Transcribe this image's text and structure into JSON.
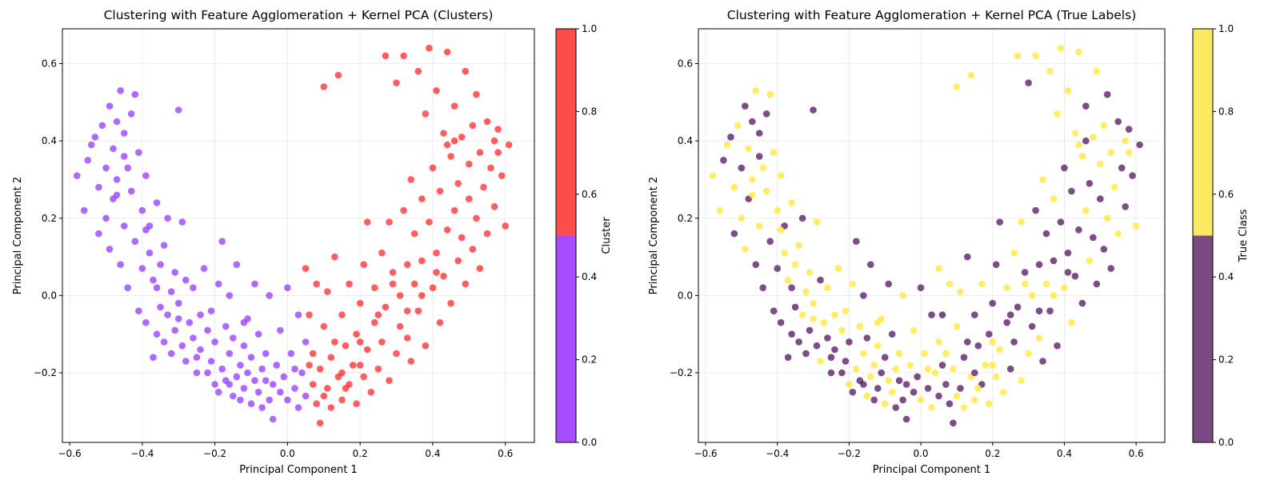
{
  "chart_data": [
    {
      "type": "scatter",
      "title": "Clustering with Feature Agglomeration + Kernel PCA (Clusters)",
      "xlabel": "Principal Component 1",
      "ylabel": "Principal Component 2",
      "xlim": [
        -0.62,
        0.68
      ],
      "ylim": [
        -0.38,
        0.69
      ],
      "xticks": [
        "−0.6",
        "−0.4",
        "−0.2",
        "0.0",
        "0.2",
        "0.4",
        "0.6"
      ],
      "xtick_values": [
        -0.6,
        -0.4,
        -0.2,
        0.0,
        0.2,
        0.4,
        0.6
      ],
      "yticks": [
        "−0.2",
        "0.0",
        "0.2",
        "0.4",
        "0.6"
      ],
      "ytick_values": [
        -0.2,
        0.0,
        0.2,
        0.4,
        0.6
      ],
      "grid": true,
      "color_by": "cluster",
      "series_colors": {
        "0": "#8b2bff",
        "1": "#ff1a1a"
      },
      "colorbar": {
        "label": "Cluster",
        "range": [
          0.0,
          1.0
        ],
        "ticks": [
          "0.0",
          "0.2",
          "0.4",
          "0.6",
          "0.8",
          "1.0"
        ],
        "tick_values": [
          0.0,
          0.2,
          0.4,
          0.6,
          0.8,
          1.0
        ],
        "segments": [
          {
            "from": 0.0,
            "to": 0.5,
            "color": "#a64dff"
          },
          {
            "from": 0.5,
            "to": 1.0,
            "color": "#ff4d4d"
          }
        ]
      }
    },
    {
      "type": "scatter",
      "title": "Clustering with Feature Agglomeration + Kernel PCA (True Labels)",
      "xlabel": "Principal Component 1",
      "ylabel": "Principal Component 2",
      "xlim": [
        -0.62,
        0.68
      ],
      "ylim": [
        -0.38,
        0.69
      ],
      "xticks": [
        "−0.6",
        "−0.4",
        "−0.2",
        "0.0",
        "0.2",
        "0.4",
        "0.6"
      ],
      "xtick_values": [
        -0.6,
        -0.4,
        -0.2,
        0.0,
        0.2,
        0.4,
        0.6
      ],
      "yticks": [
        "−0.2",
        "0.0",
        "0.2",
        "0.4",
        "0.6"
      ],
      "ytick_values": [
        -0.2,
        0.0,
        0.2,
        0.4,
        0.6
      ],
      "grid": true,
      "color_by": "true_label",
      "series_colors": {
        "0": "#440154",
        "1": "#fde725"
      },
      "colorbar": {
        "label": "True Class",
        "range": [
          0.0,
          1.0
        ],
        "ticks": [
          "0.0",
          "0.2",
          "0.4",
          "0.6",
          "0.8",
          "1.0"
        ],
        "tick_values": [
          0.0,
          0.2,
          0.4,
          0.6,
          0.8,
          1.0
        ],
        "segments": [
          {
            "from": 0.0,
            "to": 0.5,
            "color": "#7a4a85"
          },
          {
            "from": 0.5,
            "to": 1.0,
            "color": "#fde95f"
          }
        ]
      }
    }
  ],
  "points": [
    [
      -0.58,
      0.31,
      0,
      1
    ],
    [
      -0.56,
      0.22,
      0,
      1
    ],
    [
      -0.55,
      0.35,
      0,
      0
    ],
    [
      -0.54,
      0.39,
      0,
      1
    ],
    [
      -0.53,
      0.41,
      0,
      0
    ],
    [
      -0.52,
      0.28,
      0,
      1
    ],
    [
      -0.52,
      0.16,
      0,
      0
    ],
    [
      -0.51,
      0.44,
      0,
      1
    ],
    [
      -0.5,
      0.33,
      0,
      0
    ],
    [
      -0.5,
      0.2,
      0,
      1
    ],
    [
      -0.49,
      0.49,
      0,
      0
    ],
    [
      -0.49,
      0.12,
      0,
      1
    ],
    [
      -0.48,
      0.38,
      0,
      1
    ],
    [
      -0.48,
      0.25,
      0,
      0
    ],
    [
      -0.47,
      0.3,
      0,
      1
    ],
    [
      -0.47,
      0.45,
      0,
      0
    ],
    [
      -0.46,
      0.53,
      0,
      1
    ],
    [
      -0.46,
      0.08,
      0,
      0
    ],
    [
      -0.45,
      0.18,
      0,
      1
    ],
    [
      -0.45,
      0.42,
      0,
      0
    ],
    [
      -0.44,
      0.33,
      0,
      1
    ],
    [
      -0.44,
      0.02,
      0,
      0
    ],
    [
      -0.43,
      0.27,
      0,
      1
    ],
    [
      -0.43,
      0.47,
      0,
      0
    ],
    [
      -0.42,
      0.52,
      0,
      1
    ],
    [
      -0.42,
      0.14,
      0,
      0
    ],
    [
      -0.41,
      0.37,
      0,
      1
    ],
    [
      -0.41,
      -0.04,
      0,
      0
    ],
    [
      -0.4,
      0.22,
      0,
      1
    ],
    [
      -0.4,
      0.07,
      0,
      0
    ],
    [
      -0.39,
      0.31,
      0,
      1
    ],
    [
      -0.39,
      -0.07,
      0,
      0
    ],
    [
      -0.38,
      0.11,
      0,
      1
    ],
    [
      -0.38,
      0.18,
      0,
      0
    ],
    [
      -0.37,
      0.04,
      0,
      1
    ],
    [
      -0.37,
      -0.16,
      0,
      0
    ],
    [
      -0.36,
      0.24,
      0,
      1
    ],
    [
      -0.36,
      -0.1,
      0,
      0
    ],
    [
      -0.35,
      0.08,
      0,
      1
    ],
    [
      -0.35,
      -0.03,
      0,
      0
    ],
    [
      -0.34,
      0.13,
      0,
      1
    ],
    [
      -0.34,
      -0.12,
      0,
      0
    ],
    [
      -0.33,
      -0.05,
      0,
      1
    ],
    [
      -0.33,
      0.2,
      0,
      0
    ],
    [
      -0.32,
      0.01,
      0,
      1
    ],
    [
      -0.32,
      -0.15,
      0,
      0
    ],
    [
      -0.31,
      0.06,
      0,
      1
    ],
    [
      -0.31,
      -0.09,
      0,
      0
    ],
    [
      -0.3,
      0.48,
      0,
      0
    ],
    [
      -0.3,
      -0.02,
      0,
      1
    ],
    [
      -0.29,
      0.19,
      0,
      1
    ],
    [
      -0.29,
      -0.13,
      0,
      0
    ],
    [
      -0.28,
      -0.17,
      0,
      1
    ],
    [
      -0.28,
      0.04,
      0,
      0
    ],
    [
      -0.27,
      -0.07,
      0,
      1
    ],
    [
      -0.26,
      -0.11,
      0,
      0
    ],
    [
      -0.26,
      0.02,
      0,
      1
    ],
    [
      -0.25,
      -0.16,
      0,
      0
    ],
    [
      -0.24,
      -0.05,
      0,
      1
    ],
    [
      -0.24,
      -0.14,
      0,
      0
    ],
    [
      -0.23,
      0.07,
      0,
      1
    ],
    [
      -0.22,
      -0.2,
      0,
      0
    ],
    [
      -0.22,
      -0.09,
      0,
      1
    ],
    [
      -0.21,
      -0.17,
      0,
      0
    ],
    [
      -0.2,
      -0.23,
      0,
      1
    ],
    [
      -0.2,
      -0.12,
      0,
      0
    ],
    [
      -0.19,
      0.03,
      0,
      1
    ],
    [
      -0.19,
      -0.25,
      0,
      0
    ],
    [
      -0.18,
      -0.19,
      0,
      1
    ],
    [
      -0.18,
      0.14,
      0,
      0
    ],
    [
      -0.17,
      -0.08,
      0,
      1
    ],
    [
      -0.17,
      -0.22,
      0,
      0
    ],
    [
      -0.16,
      -0.15,
      0,
      1
    ],
    [
      -0.16,
      0.0,
      0,
      0
    ],
    [
      -0.15,
      -0.26,
      0,
      1
    ],
    [
      -0.15,
      -0.11,
      0,
      0
    ],
    [
      -0.14,
      -0.21,
      0,
      1
    ],
    [
      -0.14,
      0.08,
      0,
      0
    ],
    [
      -0.13,
      -0.18,
      0,
      1
    ],
    [
      -0.13,
      -0.27,
      0,
      0
    ],
    [
      -0.12,
      -0.13,
      0,
      1
    ],
    [
      -0.12,
      -0.24,
      0,
      0
    ],
    [
      -0.11,
      -0.06,
      0,
      1
    ],
    [
      -0.11,
      -0.2,
      0,
      0
    ],
    [
      -0.1,
      -0.28,
      0,
      1
    ],
    [
      -0.1,
      -0.16,
      0,
      0
    ],
    [
      -0.09,
      -0.22,
      0,
      1
    ],
    [
      -0.09,
      0.03,
      0,
      0
    ],
    [
      -0.08,
      -0.25,
      0,
      1
    ],
    [
      -0.08,
      -0.1,
      0,
      0
    ],
    [
      -0.07,
      -0.19,
      0,
      1
    ],
    [
      -0.07,
      -0.29,
      0,
      0
    ],
    [
      -0.06,
      -0.15,
      0,
      1
    ],
    [
      -0.05,
      -0.27,
      0,
      0
    ],
    [
      -0.05,
      0.0,
      0,
      1
    ],
    [
      -0.04,
      -0.23,
      0,
      0
    ],
    [
      -0.04,
      -0.32,
      0,
      0
    ],
    [
      -0.03,
      -0.18,
      0,
      1
    ],
    [
      -0.02,
      -0.25,
      0,
      0
    ],
    [
      -0.02,
      -0.09,
      0,
      1
    ],
    [
      -0.01,
      -0.21,
      0,
      0
    ],
    [
      0.0,
      -0.27,
      0,
      1
    ],
    [
      0.0,
      0.02,
      0,
      0
    ],
    [
      0.01,
      -0.15,
      0,
      1
    ],
    [
      0.02,
      -0.24,
      0,
      0
    ],
    [
      0.03,
      -0.29,
      0,
      1
    ],
    [
      0.03,
      -0.05,
      0,
      0
    ],
    [
      0.04,
      -0.2,
      0,
      1
    ],
    [
      0.05,
      -0.26,
      0,
      0
    ],
    [
      0.05,
      -0.12,
      0,
      1
    ],
    [
      0.05,
      0.07,
      1,
      1
    ],
    [
      0.06,
      -0.05,
      1,
      0
    ],
    [
      0.07,
      -0.15,
      1,
      1
    ],
    [
      0.07,
      -0.23,
      1,
      0
    ],
    [
      0.08,
      0.03,
      1,
      1
    ],
    [
      0.08,
      -0.28,
      1,
      0
    ],
    [
      0.09,
      -0.19,
      1,
      1
    ],
    [
      0.09,
      -0.33,
      1,
      0
    ],
    [
      0.1,
      -0.08,
      1,
      1
    ],
    [
      0.1,
      0.54,
      1,
      1
    ],
    [
      0.11,
      -0.24,
      1,
      0
    ],
    [
      0.11,
      0.01,
      1,
      1
    ],
    [
      0.12,
      -0.16,
      1,
      0
    ],
    [
      0.12,
      -0.29,
      1,
      1
    ],
    [
      0.13,
      0.1,
      1,
      0
    ],
    [
      0.14,
      -0.21,
      1,
      1
    ],
    [
      0.14,
      0.57,
      1,
      1
    ],
    [
      0.15,
      -0.05,
      1,
      0
    ],
    [
      0.15,
      -0.27,
      1,
      1
    ],
    [
      0.16,
      -0.13,
      1,
      0
    ],
    [
      0.17,
      0.03,
      1,
      1
    ],
    [
      0.17,
      -0.23,
      1,
      0
    ],
    [
      0.18,
      -0.18,
      1,
      1
    ],
    [
      0.19,
      -0.1,
      1,
      0
    ],
    [
      0.19,
      -0.28,
      1,
      1
    ],
    [
      0.2,
      -0.02,
      1,
      0
    ],
    [
      0.21,
      -0.21,
      1,
      1
    ],
    [
      0.21,
      0.08,
      1,
      0
    ],
    [
      0.22,
      -0.14,
      1,
      1
    ],
    [
      0.22,
      0.19,
      1,
      0
    ],
    [
      0.23,
      -0.25,
      1,
      1
    ],
    [
      0.24,
      -0.07,
      1,
      0
    ],
    [
      0.24,
      0.02,
      1,
      1
    ],
    [
      0.25,
      -0.19,
      1,
      0
    ],
    [
      0.26,
      0.11,
      1,
      1
    ],
    [
      0.26,
      -0.12,
      1,
      0
    ],
    [
      0.27,
      0.62,
      1,
      1
    ],
    [
      0.27,
      -0.03,
      1,
      0
    ],
    [
      0.28,
      -0.22,
      1,
      1
    ],
    [
      0.28,
      0.19,
      1,
      1
    ],
    [
      0.29,
      0.06,
      1,
      0
    ],
    [
      0.3,
      -0.15,
      1,
      1
    ],
    [
      0.3,
      0.55,
      1,
      0
    ],
    [
      0.31,
      0.0,
      1,
      1
    ],
    [
      0.31,
      -0.08,
      1,
      0
    ],
    [
      0.32,
      0.62,
      1,
      1
    ],
    [
      0.32,
      0.22,
      1,
      0
    ],
    [
      0.33,
      -0.11,
      1,
      1
    ],
    [
      0.33,
      0.08,
      1,
      0
    ],
    [
      0.34,
      0.3,
      1,
      1
    ],
    [
      0.34,
      -0.17,
      1,
      0
    ],
    [
      0.35,
      0.03,
      1,
      1
    ],
    [
      0.35,
      0.16,
      1,
      0
    ],
    [
      0.36,
      0.58,
      1,
      1
    ],
    [
      0.36,
      -0.04,
      1,
      0
    ],
    [
      0.37,
      0.25,
      1,
      1
    ],
    [
      0.37,
      0.09,
      1,
      0
    ],
    [
      0.38,
      0.47,
      1,
      1
    ],
    [
      0.38,
      -0.13,
      1,
      0
    ],
    [
      0.39,
      0.64,
      1,
      1
    ],
    [
      0.39,
      0.19,
      1,
      0
    ],
    [
      0.4,
      0.02,
      1,
      1
    ],
    [
      0.4,
      0.33,
      1,
      0
    ],
    [
      0.41,
      0.53,
      1,
      1
    ],
    [
      0.41,
      0.11,
      1,
      0
    ],
    [
      0.42,
      -0.07,
      1,
      1
    ],
    [
      0.42,
      0.27,
      1,
      0
    ],
    [
      0.43,
      0.42,
      1,
      1
    ],
    [
      0.43,
      0.05,
      1,
      0
    ],
    [
      0.44,
      0.63,
      1,
      1
    ],
    [
      0.44,
      0.17,
      1,
      0
    ],
    [
      0.45,
      0.36,
      1,
      1
    ],
    [
      0.45,
      -0.02,
      1,
      0
    ],
    [
      0.46,
      0.22,
      1,
      1
    ],
    [
      0.46,
      0.49,
      1,
      0
    ],
    [
      0.47,
      0.09,
      1,
      1
    ],
    [
      0.47,
      0.29,
      1,
      0
    ],
    [
      0.48,
      0.41,
      1,
      1
    ],
    [
      0.48,
      0.15,
      1,
      0
    ],
    [
      0.49,
      0.58,
      1,
      1
    ],
    [
      0.49,
      0.03,
      1,
      0
    ],
    [
      0.5,
      0.34,
      1,
      1
    ],
    [
      0.5,
      0.25,
      1,
      0
    ],
    [
      0.51,
      0.44,
      1,
      1
    ],
    [
      0.51,
      0.12,
      1,
      0
    ],
    [
      0.52,
      0.2,
      1,
      1
    ],
    [
      0.52,
      0.52,
      1,
      0
    ],
    [
      0.53,
      0.37,
      1,
      1
    ],
    [
      0.53,
      0.07,
      1,
      0
    ],
    [
      0.54,
      0.28,
      1,
      1
    ],
    [
      0.55,
      0.45,
      1,
      0
    ],
    [
      0.55,
      0.16,
      1,
      1
    ],
    [
      0.56,
      0.33,
      1,
      0
    ],
    [
      0.57,
      0.4,
      1,
      1
    ],
    [
      0.57,
      0.23,
      1,
      0
    ],
    [
      0.58,
      0.37,
      1,
      1
    ],
    [
      0.59,
      0.31,
      1,
      0
    ],
    [
      0.6,
      0.18,
      1,
      1
    ],
    [
      0.61,
      0.39,
      1,
      0
    ],
    [
      0.58,
      0.43,
      1,
      0
    ],
    [
      0.44,
      0.39,
      1,
      1
    ],
    [
      0.46,
      0.4,
      1,
      0
    ],
    [
      0.2,
      -0.18,
      1,
      1
    ],
    [
      0.13,
      -0.12,
      1,
      0
    ],
    [
      0.16,
      -0.24,
      1,
      1
    ],
    [
      -0.47,
      0.26,
      0,
      1
    ],
    [
      -0.45,
      0.36,
      0,
      0
    ],
    [
      -0.39,
      0.17,
      0,
      1
    ],
    [
      -0.36,
      0.02,
      0,
      0
    ],
    [
      -0.3,
      -0.06,
      0,
      1
    ],
    [
      -0.25,
      -0.2,
      0,
      0
    ],
    [
      -0.21,
      -0.04,
      0,
      1
    ],
    [
      -0.16,
      -0.23,
      0,
      0
    ],
    [
      -0.12,
      -0.07,
      0,
      1
    ],
    [
      -0.06,
      -0.22,
      0,
      0
    ],
    [
      0.02,
      -0.19,
      0,
      1
    ],
    [
      0.06,
      -0.18,
      1,
      0
    ],
    [
      0.1,
      -0.26,
      1,
      1
    ],
    [
      0.15,
      -0.2,
      1,
      0
    ],
    [
      0.2,
      -0.12,
      1,
      1
    ],
    [
      0.25,
      -0.05,
      1,
      0
    ],
    [
      0.29,
      0.03,
      1,
      1
    ],
    [
      0.33,
      -0.04,
      1,
      0
    ],
    [
      0.37,
      0.0,
      1,
      1
    ],
    [
      0.41,
      0.06,
      1,
      0
    ]
  ]
}
